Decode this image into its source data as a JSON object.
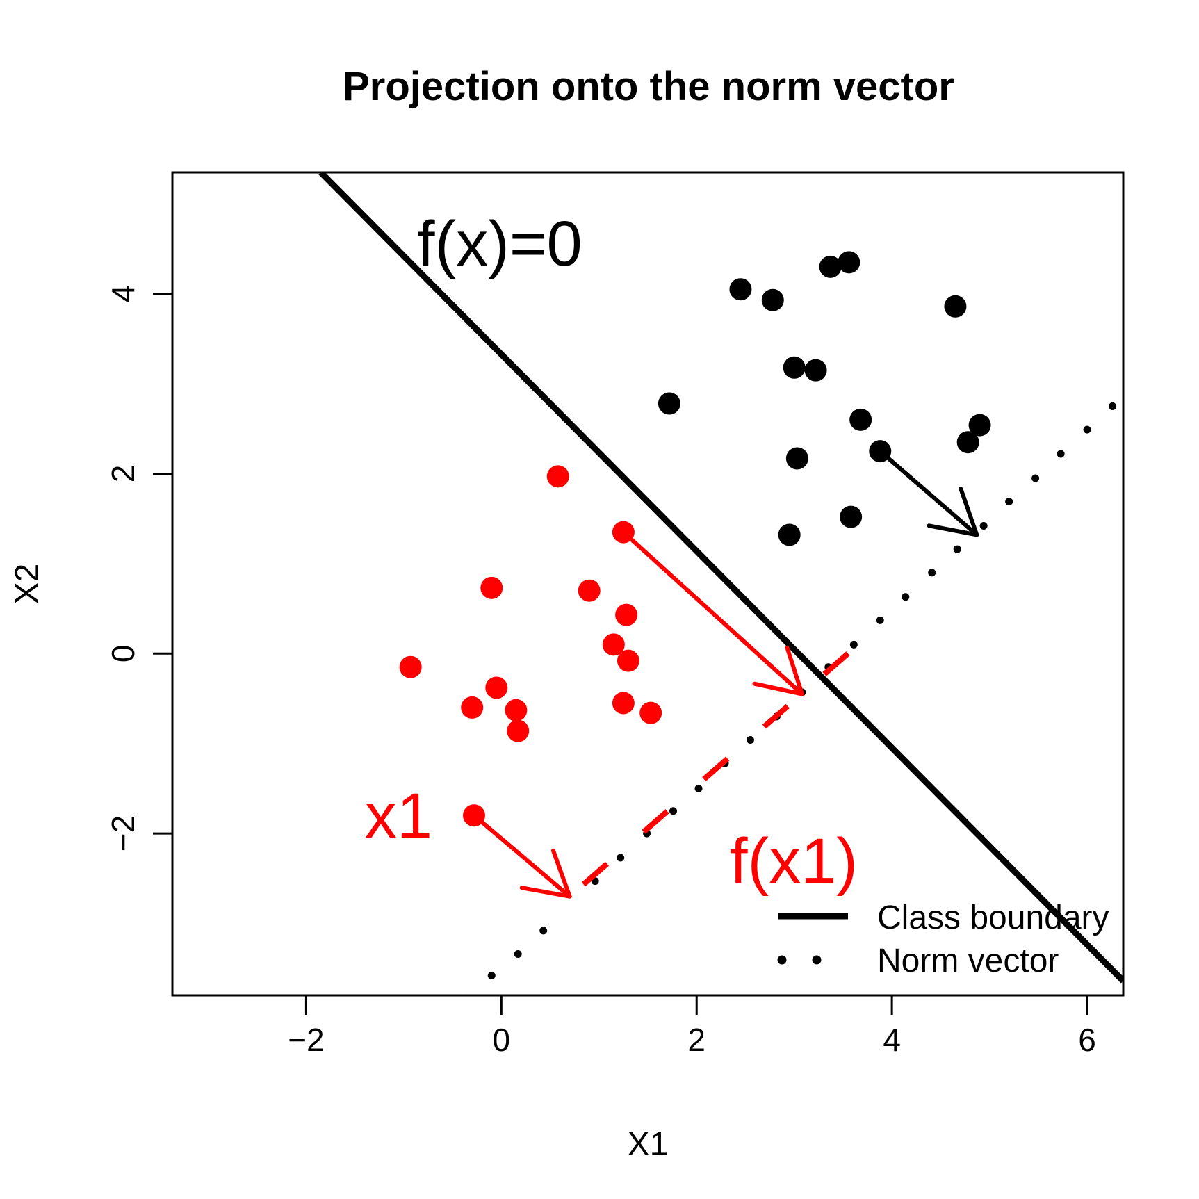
{
  "chart_data": {
    "type": "scatter",
    "title": "Projection onto the norm vector",
    "xlabel": "X1",
    "ylabel": "X2",
    "xlim": [
      -3.37,
      6.37
    ],
    "ylim": [
      -3.8,
      5.35
    ],
    "x_ticks": [
      -2,
      0,
      2,
      4,
      6
    ],
    "y_ticks": [
      -2,
      0,
      2,
      4
    ],
    "x_tick_labels": [
      "−2",
      "0",
      "2",
      "4",
      "6"
    ],
    "y_tick_labels": [
      "−2",
      "0",
      "2",
      "4"
    ],
    "grid": false,
    "colors": {
      "class_positive": "#000000",
      "class_negative": "#ff0000"
    },
    "series": [
      {
        "color": "#000000",
        "points": [
          [
            2.45,
            4.05
          ],
          [
            2.78,
            3.93
          ],
          [
            3.37,
            4.3
          ],
          [
            3.56,
            4.35
          ],
          [
            4.65,
            3.86
          ],
          [
            3.0,
            3.18
          ],
          [
            3.22,
            3.15
          ],
          [
            1.72,
            2.78
          ],
          [
            3.68,
            2.6
          ],
          [
            4.9,
            2.54
          ],
          [
            4.78,
            2.35
          ],
          [
            3.88,
            2.25
          ],
          [
            3.03,
            2.17
          ],
          [
            3.58,
            1.52
          ],
          [
            2.95,
            1.32
          ]
        ]
      },
      {
        "color": "#ff0000",
        "points": [
          [
            0.58,
            1.97
          ],
          [
            1.25,
            1.35
          ],
          [
            -0.1,
            0.73
          ],
          [
            0.9,
            0.7
          ],
          [
            1.28,
            0.43
          ],
          [
            1.15,
            0.1
          ],
          [
            1.3,
            -0.08
          ],
          [
            -0.93,
            -0.15
          ],
          [
            -0.05,
            -0.38
          ],
          [
            -0.3,
            -0.6
          ],
          [
            0.15,
            -0.63
          ],
          [
            1.25,
            -0.55
          ],
          [
            1.53,
            -0.66
          ],
          [
            0.17,
            -0.86
          ],
          [
            -0.28,
            -1.8
          ]
        ]
      }
    ],
    "class_boundary": {
      "points": [
        [
          -1.85,
          5.35
        ],
        [
          6.37,
          -3.64
        ]
      ]
    },
    "norm_vector": {
      "points": [
        [
          -0.37,
          -3.83
        ],
        [
          -0.1,
          -3.58
        ],
        [
          0.17,
          -3.34
        ],
        [
          0.43,
          -3.08
        ],
        [
          0.96,
          -2.53
        ],
        [
          1.22,
          -2.27
        ],
        [
          1.49,
          -2.0
        ],
        [
          1.76,
          -1.75
        ],
        [
          2.02,
          -1.5
        ],
        [
          2.29,
          -1.22
        ],
        [
          2.55,
          -0.96
        ],
        [
          2.82,
          -0.7
        ],
        [
          3.08,
          -0.43
        ],
        [
          3.35,
          -0.15
        ],
        [
          3.61,
          0.1
        ],
        [
          3.88,
          0.37
        ],
        [
          4.14,
          0.63
        ],
        [
          4.41,
          0.9
        ],
        [
          4.67,
          1.16
        ],
        [
          4.94,
          1.42
        ],
        [
          5.2,
          1.69
        ],
        [
          5.47,
          1.95
        ],
        [
          5.73,
          2.22
        ],
        [
          6.0,
          2.49
        ],
        [
          6.26,
          2.75
        ]
      ]
    },
    "projection_arrows": [
      {
        "color": "#000000",
        "from": [
          3.88,
          2.25
        ],
        "to": [
          4.87,
          1.32
        ]
      },
      {
        "color": "#ff0000",
        "from": [
          1.25,
          1.35
        ],
        "to": [
          3.08,
          -0.45
        ]
      },
      {
        "color": "#ff0000",
        "from": [
          -0.28,
          -1.8
        ],
        "to": [
          0.7,
          -2.7
        ]
      }
    ],
    "fx1_dashed_line": {
      "color": "#ff0000",
      "from": [
        3.55,
        0.0
      ],
      "to": [
        0.7,
        -2.7
      ]
    },
    "annotations": [
      {
        "text": "f(x)=0",
        "color": "#000000"
      },
      {
        "text": "x1",
        "color": "#ff0000"
      },
      {
        "text": "f(x1)",
        "color": "#ff0000"
      }
    ],
    "legend": {
      "position": "bottom-right",
      "entries": [
        {
          "label": "Class boundary",
          "style": "solid"
        },
        {
          "label": "Norm vector",
          "style": "dotted"
        }
      ]
    }
  }
}
